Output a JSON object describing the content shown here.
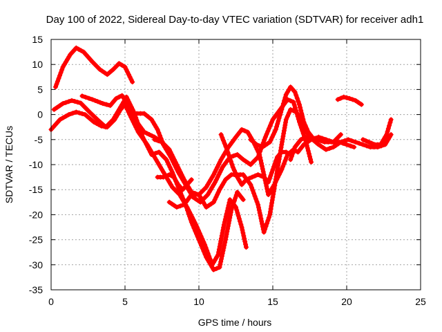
{
  "chart_data": {
    "type": "scatter",
    "title": "Day 100 of 2022, Sidereal Day-to-day VTEC variation (SDTVAR) for receiver adh1",
    "xlabel": "GPS time / hours",
    "ylabel": "SDTVAR / TECUs",
    "xlim": [
      0,
      25
    ],
    "ylim": [
      -35,
      15
    ],
    "xticks": [
      0,
      5,
      10,
      15,
      20,
      25
    ],
    "yticks": [
      -35,
      -30,
      -25,
      -20,
      -15,
      -10,
      -5,
      0,
      5,
      10,
      15
    ],
    "grid": true,
    "marker": "plus",
    "color": "#ff0000",
    "series": [
      {
        "x": [
          0.3,
          0.8,
          1.3,
          1.7,
          2.2,
          2.8,
          3.3,
          3.8,
          4.2,
          4.6,
          5.0,
          5.5
        ],
        "y": [
          5.5,
          9.5,
          12.0,
          13.3,
          12.5,
          10.5,
          9.0,
          8.0,
          9.0,
          10.2,
          9.5,
          6.5
        ]
      },
      {
        "x": [
          2.1,
          2.8,
          3.5,
          4.0,
          4.4,
          4.8,
          5.3,
          5.8,
          6.3,
          7.0,
          7.5,
          8.0,
          8.5,
          9.0
        ],
        "y": [
          3.7,
          3.0,
          2.2,
          1.8,
          3.2,
          3.8,
          1.5,
          -1.5,
          -3.5,
          -4.5,
          -5.5,
          -8.0,
          -10.5,
          -13.0
        ]
      },
      {
        "x": [
          0.2,
          0.8,
          1.4,
          2.0,
          2.6,
          3.2,
          3.7,
          4.2,
          4.7,
          5.1,
          5.6,
          6.2,
          6.8,
          7.3,
          7.8,
          8.2,
          8.6,
          9.1,
          9.5,
          10.0,
          10.5,
          11.0,
          11.4,
          11.8,
          12.2,
          12.6,
          13.0
        ],
        "y": [
          1.0,
          2.2,
          2.8,
          2.3,
          0.5,
          -1.2,
          -2.5,
          -1.0,
          1.5,
          3.5,
          0.5,
          -4.5,
          -8.0,
          -7.5,
          -9.0,
          -11.5,
          -14.5,
          -18.0,
          -21.5,
          -25.0,
          -28.5,
          -31.0,
          -30.5,
          -25.0,
          -19.0,
          -15.5,
          -17.0
        ]
      },
      {
        "x": [
          0.0,
          0.6,
          1.2,
          1.7,
          2.3,
          2.9,
          3.4,
          3.8,
          4.3,
          4.7,
          5.0,
          5.4,
          5.9,
          6.5,
          7.0,
          7.6,
          8.2,
          8.7,
          9.2,
          9.8,
          10.4,
          10.9,
          11.3,
          11.7,
          12.1,
          12.5,
          12.9,
          13.2
        ],
        "y": [
          -3.0,
          -1.0,
          0.0,
          0.5,
          0.0,
          -1.5,
          -2.3,
          -2.5,
          -1.0,
          1.0,
          2.0,
          -0.5,
          -3.5,
          -6.0,
          -8.5,
          -11.5,
          -14.5,
          -16.0,
          -18.5,
          -22.0,
          -26.0,
          -30.0,
          -28.0,
          -22.0,
          -17.0,
          -18.5,
          -22.5,
          -26.5
        ]
      },
      {
        "x": [
          5.8,
          6.3,
          6.8,
          7.2,
          7.6,
          8.1,
          8.6,
          9.1,
          9.6,
          10.1,
          10.6,
          11.1,
          11.6,
          12.1,
          12.6,
          13.0,
          13.5,
          14.0,
          14.5,
          15.0,
          15.5,
          16.0,
          16.4,
          16.8,
          17.2,
          17.6
        ],
        "y": [
          0.2,
          0.2,
          -1.0,
          -3.0,
          -6.0,
          -8.5,
          -11.5,
          -14.0,
          -16.5,
          -17.5,
          -16.0,
          -13.5,
          -10.5,
          -8.5,
          -8.0,
          -9.0,
          -10.0,
          -8.5,
          -4.5,
          -1.0,
          1.0,
          3.0,
          2.5,
          -1.5,
          -5.0,
          -9.5
        ]
      },
      {
        "x": [
          7.0,
          7.5,
          8.0,
          8.5,
          9.0,
          9.5,
          10.0,
          10.5,
          11.0,
          11.5,
          12.0,
          12.5,
          12.9,
          13.3,
          13.7,
          14.1,
          14.4,
          14.7,
          15.1,
          15.6,
          16.0,
          16.4,
          16.7,
          17.1,
          17.6,
          18.1,
          18.6,
          19.1,
          19.6
        ],
        "y": [
          -5.0,
          -5.5,
          -7.0,
          -10.0,
          -13.0,
          -15.5,
          -16.0,
          -14.5,
          -12.0,
          -9.0,
          -6.5,
          -4.5,
          -3.0,
          -3.5,
          -5.5,
          -8.0,
          -12.0,
          -16.0,
          -14.0,
          -11.0,
          -8.0,
          -7.0,
          -7.5,
          -6.0,
          -5.0,
          -4.5,
          -5.0,
          -5.5,
          -4.0
        ]
      },
      {
        "x": [
          8.0,
          8.5,
          9.0,
          9.5,
          10.0,
          10.5,
          11.0,
          11.4,
          11.8,
          12.2,
          12.6,
          13.0,
          13.5,
          14.0,
          14.4,
          14.8,
          15.2,
          15.6,
          15.9,
          16.2,
          16.6,
          17.0,
          17.5,
          18.0,
          18.5,
          19.0,
          19.5,
          20.0,
          20.5
        ],
        "y": [
          -17.5,
          -18.5,
          -18.0,
          -16.0,
          -16.0,
          -18.5,
          -17.5,
          -15.0,
          -13.0,
          -12.0,
          -12.0,
          -12.0,
          -14.0,
          -18.0,
          -23.5,
          -20.0,
          -13.0,
          -6.0,
          -1.0,
          1.0,
          0.5,
          -2.0,
          -4.5,
          -5.0,
          -5.5,
          -5.5,
          -5.5,
          -6.0,
          -6.5
        ]
      },
      {
        "x": [
          13.5,
          13.9,
          14.3,
          14.8,
          15.2,
          15.6,
          15.9,
          16.2,
          16.5,
          16.8,
          17.1,
          17.4,
          17.8
        ],
        "y": [
          -5.0,
          -6.0,
          -6.5,
          -5.5,
          -3.0,
          1.0,
          4.0,
          5.5,
          4.5,
          2.0,
          -1.5,
          -3.5,
          -5.0
        ]
      },
      {
        "x": [
          7.2,
          7.6,
          8.0,
          8.3,
          8.6,
          8.9,
          9.2,
          9.5
        ],
        "y": [
          -12.5,
          -12.5,
          -12.0,
          -12.5,
          -14.0,
          -15.0,
          -14.0,
          -13.0
        ]
      },
      {
        "x": [
          11.5,
          11.9,
          12.3,
          12.6,
          12.9,
          13.2,
          13.6,
          14.0,
          14.4,
          14.7,
          15.0,
          15.3,
          15.6,
          15.9,
          16.2
        ],
        "y": [
          -4.0,
          -7.0,
          -10.5,
          -12.5,
          -14.0,
          -13.0,
          -12.5,
          -12.0,
          -12.5,
          -13.5,
          -11.0,
          -8.5,
          -7.5,
          -7.5,
          -8.0
        ]
      },
      {
        "x": [
          16.2,
          16.5,
          16.9,
          17.3,
          17.7,
          18.1,
          18.6,
          19.1,
          19.6,
          20.1,
          20.6,
          21.1,
          21.6,
          22.1,
          22.6,
          23.0
        ],
        "y": [
          -9.0,
          -6.5,
          -5.0,
          -4.5,
          -5.0,
          -6.0,
          -7.0,
          -6.5,
          -5.5,
          -5.0,
          -5.5,
          -6.0,
          -6.5,
          -6.5,
          -6.0,
          -4.0
        ]
      },
      {
        "x": [
          19.4,
          19.8,
          20.2,
          20.6,
          21.0
        ],
        "y": [
          3.0,
          3.5,
          3.2,
          2.8,
          2.0
        ]
      },
      {
        "x": [
          21.1,
          21.5,
          21.9,
          22.3,
          22.7,
          23.0
        ],
        "y": [
          -5.0,
          -5.5,
          -6.0,
          -6.0,
          -4.0,
          -1.0
        ]
      }
    ]
  }
}
